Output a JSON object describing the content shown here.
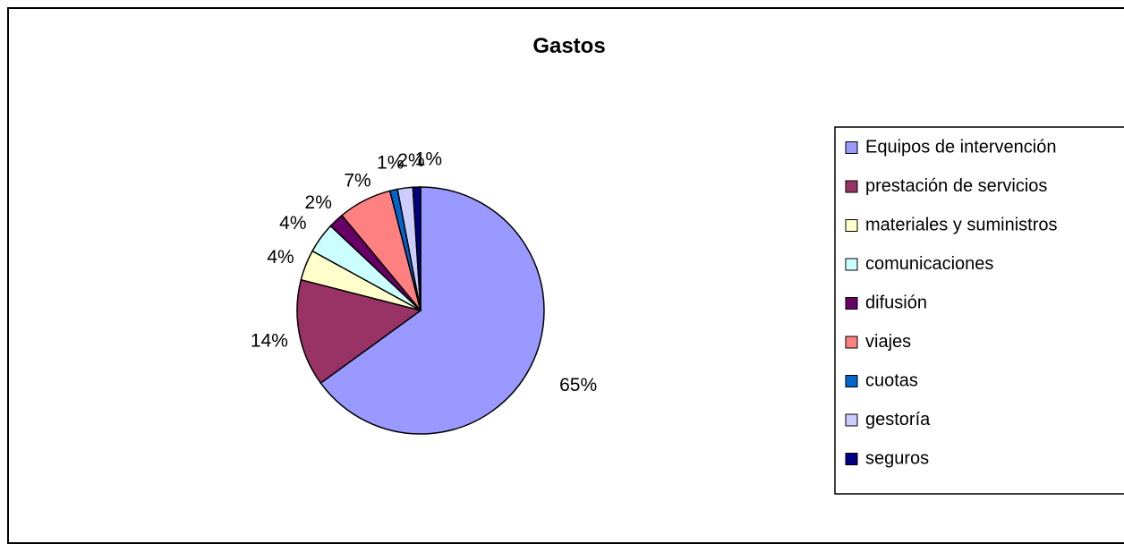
{
  "chart_data": {
    "type": "pie",
    "title": "Gastos",
    "categories": [
      "Equipos de intervención",
      "prestación de servicios",
      "materiales y suministros",
      "comunicaciones",
      "difusión",
      "viajes",
      "cuotas",
      "gestoría",
      "seguros"
    ],
    "values": [
      65,
      14,
      4,
      4,
      2,
      7,
      1,
      2,
      1
    ],
    "data_labels": [
      "65%",
      "14%",
      "4%",
      "4%",
      "2%",
      "7%",
      "1%",
      "2%",
      "1%"
    ],
    "colors": [
      "#9999ff",
      "#993366",
      "#ffffcc",
      "#ccffff",
      "#660066",
      "#ff8080",
      "#0066cc",
      "#ccccff",
      "#000080"
    ],
    "legend_position": "right",
    "start_angle_deg": 0,
    "direction": "clockwise"
  }
}
